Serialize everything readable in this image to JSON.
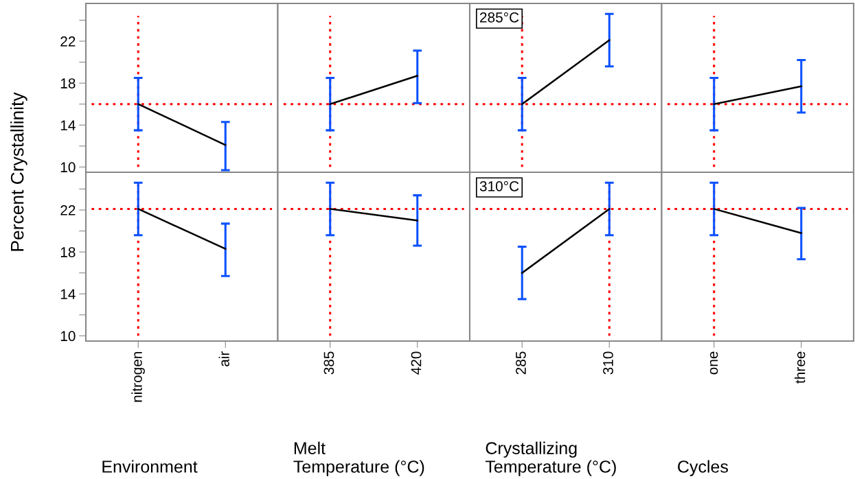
{
  "chart_data": [
    {
      "type": "line",
      "ylabel": "Percent Crystallinity",
      "categories": [
        "nitrogen",
        "air"
      ],
      "series": [
        {
          "color": "#000000",
          "values": [
            16.0,
            12.1
          ],
          "errors": [
            [
              13.5,
              18.5
            ],
            [
              9.7,
              14.3
            ]
          ]
        }
      ],
      "ylim": [
        9.5,
        25.6
      ],
      "yticks": [
        10,
        {
          "value": 12,
          "label": null
        },
        14,
        {
          "value": 16,
          "label": null
        },
        18,
        {
          "value": 20,
          "label": null
        },
        22,
        {
          "value": 24,
          "label": null
        }
      ],
      "ref_lines": [
        {
          "axis": "y",
          "value": 16.0,
          "color": "#ff0000",
          "line_style": "dotted"
        },
        {
          "axis": "x",
          "value": "nitrogen",
          "color": "#ff0000",
          "line_style": "dotted"
        }
      ],
      "tick_labels": "y"
    },
    {
      "type": "line",
      "categories": [
        "385",
        "420"
      ],
      "series": [
        {
          "color": "#000000",
          "values": [
            16.0,
            18.7
          ],
          "errors": [
            [
              13.5,
              18.5
            ],
            [
              16.1,
              21.1
            ]
          ]
        }
      ],
      "ylim": [
        9.5,
        25.6
      ],
      "ref_lines": [
        {
          "axis": "y",
          "value": 16.0,
          "color": "#ff0000",
          "line_style": "dotted"
        },
        {
          "axis": "x",
          "value": "385",
          "color": "#ff0000",
          "line_style": "dotted"
        }
      ],
      "tick_labels": false
    },
    {
      "type": "line",
      "categories": [
        "285",
        "310"
      ],
      "series": [
        {
          "color": "#000000",
          "values": [
            16.0,
            22.1
          ],
          "errors": [
            [
              13.5,
              18.5
            ],
            [
              19.6,
              24.6
            ]
          ]
        }
      ],
      "ylim": [
        9.5,
        25.6
      ],
      "annotations": [
        "285°C"
      ],
      "ref_lines": [
        {
          "axis": "y",
          "value": 16.0,
          "color": "#ff0000",
          "line_style": "dotted"
        },
        {
          "axis": "x",
          "value": "285",
          "color": "#ff0000",
          "line_style": "dotted"
        }
      ],
      "tick_labels": false
    },
    {
      "type": "line",
      "categories": [
        "one",
        "three"
      ],
      "series": [
        {
          "color": "#000000",
          "values": [
            16.0,
            17.7
          ],
          "errors": [
            [
              13.5,
              18.5
            ],
            [
              15.2,
              20.2
            ]
          ]
        }
      ],
      "ylim": [
        9.5,
        25.6
      ],
      "ref_lines": [
        {
          "axis": "y",
          "value": 16.0,
          "color": "#ff0000",
          "line_style": "dotted"
        },
        {
          "axis": "x",
          "value": "one",
          "color": "#ff0000",
          "line_style": "dotted"
        }
      ],
      "tick_labels": false
    },
    {
      "type": "line",
      "xlabel": "Environment",
      "categories": [
        "nitrogen",
        "air"
      ],
      "series": [
        {
          "color": "#000000",
          "values": [
            22.1,
            18.3
          ],
          "errors": [
            [
              19.6,
              24.6
            ],
            [
              15.7,
              20.7
            ]
          ]
        }
      ],
      "ylim": [
        9.5,
        25.6
      ],
      "yticks": [
        10,
        {
          "value": 12,
          "label": null
        },
        14,
        {
          "value": 16,
          "label": null
        },
        18,
        {
          "value": 20,
          "label": null
        },
        22,
        {
          "value": 24,
          "label": null
        }
      ],
      "ref_lines": [
        {
          "axis": "y",
          "value": 22.1,
          "color": "#ff0000",
          "line_style": "dotted"
        },
        {
          "axis": "x",
          "value": "nitrogen",
          "color": "#ff0000",
          "line_style": "dotted"
        }
      ]
    },
    {
      "type": "line",
      "xlabel": "Melt\nTemperature (°C)",
      "categories": [
        "385",
        "420"
      ],
      "series": [
        {
          "color": "#000000",
          "values": [
            22.1,
            21.0
          ],
          "errors": [
            [
              19.6,
              24.6
            ],
            [
              18.6,
              23.4
            ]
          ]
        }
      ],
      "ylim": [
        9.5,
        25.6
      ],
      "ref_lines": [
        {
          "axis": "y",
          "value": 22.1,
          "color": "#ff0000",
          "line_style": "dotted"
        },
        {
          "axis": "x",
          "value": "385",
          "color": "#ff0000",
          "line_style": "dotted"
        }
      ],
      "tick_labels": "x"
    },
    {
      "type": "line",
      "xlabel": "Crystallizing\nTemperature (°C)",
      "categories": [
        "285",
        "310"
      ],
      "series": [
        {
          "color": "#000000",
          "values": [
            16.0,
            22.1
          ],
          "errors": [
            [
              13.5,
              18.5
            ],
            [
              19.6,
              24.6
            ]
          ]
        }
      ],
      "ylim": [
        9.5,
        25.6
      ],
      "annotations": [
        "310°C"
      ],
      "ref_lines": [
        {
          "axis": "y",
          "value": 22.1,
          "color": "#ff0000",
          "line_style": "dotted"
        },
        {
          "axis": "x",
          "value": "310",
          "color": "#ff0000",
          "line_style": "dotted"
        }
      ],
      "tick_labels": "x"
    },
    {
      "type": "line",
      "xlabel": "Cycles",
      "categories": [
        "one",
        "three"
      ],
      "series": [
        {
          "color": "#000000",
          "values": [
            22.1,
            19.8
          ],
          "errors": [
            [
              19.6,
              24.6
            ],
            [
              17.3,
              22.2
            ]
          ]
        }
      ],
      "ylim": [
        9.5,
        25.6
      ],
      "ref_lines": [
        {
          "axis": "y",
          "value": 22.1,
          "color": "#ff0000",
          "line_style": "dotted"
        },
        {
          "axis": "x",
          "value": "one",
          "color": "#ff0000",
          "line_style": "dotted"
        }
      ],
      "tick_labels": "x"
    }
  ]
}
